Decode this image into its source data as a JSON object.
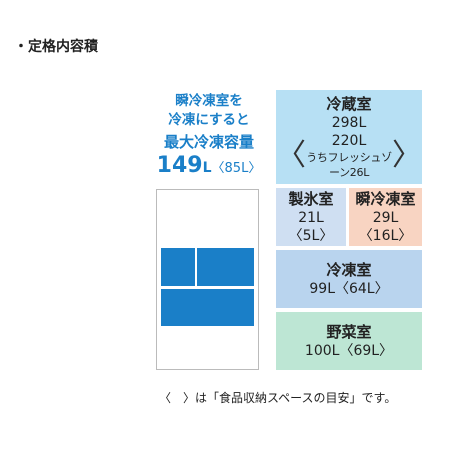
{
  "heading": "・定格内容積",
  "side_note": {
    "line1": "瞬冷凍室を",
    "line2": "冷凍にすると",
    "line3": "最大冷凍容量",
    "capacity_value": "149",
    "capacity_unit": "L",
    "capacity_paren": "〈85L〉"
  },
  "compartments": {
    "refrigerator": {
      "name": "冷蔵室",
      "total": "298L",
      "storage": "220L",
      "bracket_left": "〈",
      "bracket_right": "〉",
      "sub": "うちフレッシュゾーン26L"
    },
    "ice": {
      "name": "製氷室",
      "total": "21L",
      "storage": "〈5L〉"
    },
    "flash_freezer": {
      "name": "瞬冷凍室",
      "total": "29L",
      "storage": "〈16L〉"
    },
    "freezer": {
      "name": "冷凍室",
      "value": "99L〈64L〉"
    },
    "vegetable": {
      "name": "野菜室",
      "value": "100L〈69L〉"
    }
  },
  "footnote": "〈　〉は「食品収納スペースの目安」です。",
  "colors": {
    "accent_blue": "#1a7fc8",
    "refrigerator_bg": "#b7e0f4",
    "ice_bg": "#cfdff2",
    "flash_bg": "#f8d4c2",
    "freezer_bg": "#b9d4ee",
    "vegetable_bg": "#bde6d4"
  }
}
